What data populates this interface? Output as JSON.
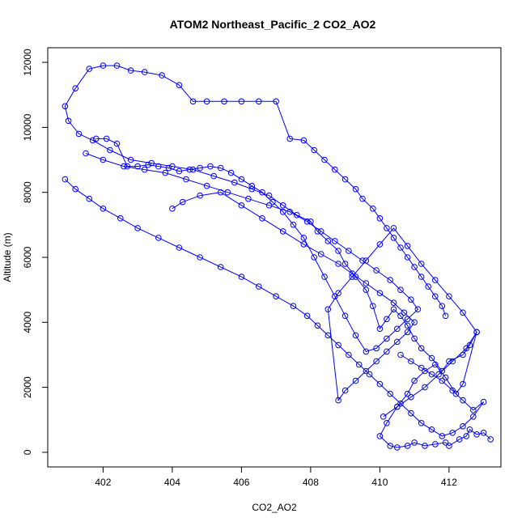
{
  "chart_data": {
    "type": "line",
    "markers": "open-circle",
    "title": "ATOM2 Northeast_Pacific_2 CO2_AO2",
    "xlabel": "CO2_AO2",
    "ylabel": "Altitude (m)",
    "xlim": [
      400.4,
      413.5
    ],
    "ylim": [
      -450,
      12450
    ],
    "xticks": [
      402,
      404,
      406,
      408,
      410,
      412
    ],
    "yticks": [
      0,
      2000,
      4000,
      6000,
      8000,
      10000,
      12000
    ],
    "grid": false,
    "legend": "none",
    "color": "#0000ff",
    "series": [
      {
        "x": [
          413.2,
          413.0,
          412.8,
          412.6,
          412.5,
          412.3,
          412.0,
          411.9,
          411.6,
          411.3,
          411.0,
          410.8,
          410.5,
          410.3,
          410.0,
          410.2,
          410.5,
          410.8,
          411.0,
          411.3,
          411.6,
          411.9,
          412.2,
          412.4,
          412.8,
          412.6,
          412.4,
          412.0,
          411.8,
          411.5,
          411.2,
          411.0,
          410.8,
          410.6,
          410.4,
          410.2,
          410.0,
          409.8,
          409.6,
          409.3,
          409.0,
          408.8,
          408.5,
          408.2,
          408.0,
          407.6,
          407.2,
          406.8,
          406.3,
          405.8,
          405.2,
          404.6,
          404.0,
          403.4,
          402.8,
          402.2,
          401.7,
          401.3,
          401.0,
          400.9,
          401.2,
          401.6,
          402.0,
          402.4,
          402.8,
          403.2,
          403.7,
          404.2,
          404.6,
          405.0,
          405.5,
          406.0,
          406.5,
          407.0,
          407.4,
          407.8,
          408.1,
          408.4,
          408.7,
          409.0,
          409.3,
          409.5,
          409.8,
          410.0,
          410.2,
          410.4,
          410.6,
          410.8,
          411.0,
          411.2,
          411.4,
          411.6,
          411.8,
          411.9
        ],
        "y": [
          400,
          600,
          550,
          700,
          500,
          400,
          200,
          300,
          250,
          200,
          300,
          200,
          150,
          200,
          500,
          900,
          1400,
          1800,
          2200,
          2500,
          2700,
          2300,
          1800,
          2100,
          3700,
          3300,
          3000,
          2800,
          2500,
          2900,
          3200,
          3500,
          3900,
          4200,
          4400,
          4100,
          3800,
          4500,
          5000,
          5400,
          5800,
          6200,
          6500,
          6800,
          7100,
          7300,
          7600,
          7900,
          8100,
          8300,
          8500,
          8700,
          8800,
          8900,
          9000,
          9300,
          9600,
          9800,
          10200,
          10650,
          11200,
          11800,
          11900,
          11900,
          11750,
          11700,
          11600,
          11300,
          10800,
          10800,
          10800,
          10800,
          10800,
          10800,
          9650,
          9600,
          9300,
          9000,
          8700,
          8400,
          8100,
          7800,
          7500,
          7200,
          6900,
          6600,
          6300,
          6000,
          5700,
          5400,
          5100,
          4800,
          4500,
          4200
        ]
      },
      {
        "x": [
          401.5,
          402.0,
          402.6,
          403.2,
          403.8,
          404.4,
          405.0,
          405.6,
          406.2,
          406.8,
          407.4,
          407.9,
          408.3,
          408.7,
          409.1,
          409.5,
          409.9,
          410.3,
          410.6,
          410.9,
          411.1,
          410.8,
          410.5,
          410.2,
          409.9,
          409.6,
          409.3,
          409.0,
          408.7,
          408.4,
          408.1,
          407.8,
          407.5,
          407.2,
          406.9,
          406.6,
          406.3,
          406.0,
          405.7,
          405.4,
          405.1,
          404.8,
          404.5,
          404.2,
          403.9,
          403.6,
          403.3,
          403.0,
          402.7,
          402.4,
          402.1,
          401.8
        ],
        "y": [
          9200,
          9000,
          8800,
          8700,
          8600,
          8400,
          8200,
          8000,
          7800,
          7600,
          7400,
          7100,
          6800,
          6500,
          6200,
          5900,
          5600,
          5300,
          5000,
          4700,
          4400,
          4100,
          3800,
          3500,
          3200,
          3100,
          3600,
          4200,
          4800,
          5400,
          6000,
          6600,
          7000,
          7400,
          7700,
          8000,
          8200,
          8400,
          8600,
          8750,
          8800,
          8750,
          8700,
          8650,
          8750,
          8800,
          8850,
          8800,
          8800,
          9500,
          9650,
          9650
        ]
      },
      {
        "x": [
          404.0,
          404.3,
          404.8,
          405.4,
          406.0,
          406.6,
          407.2,
          407.8,
          408.3,
          408.8,
          409.2,
          409.6,
          410.0,
          410.4,
          410.7,
          411.0,
          410.8,
          410.5,
          410.2,
          409.9,
          409.6,
          409.3,
          409.0,
          408.8,
          408.5,
          408.8,
          409.2,
          409.6,
          410.0,
          410.4,
          410.8,
          411.2,
          411.6,
          412.0,
          412.4,
          412.8,
          412.5,
          412.1,
          411.7,
          411.3,
          410.9,
          410.5,
          410.1
        ],
        "y": [
          7500,
          7700,
          7900,
          8000,
          7600,
          7200,
          6800,
          6400,
          6100,
          5800,
          5500,
          5200,
          4900,
          4600,
          4300,
          4000,
          3700,
          3400,
          3100,
          2800,
          2500,
          2200,
          1900,
          1600,
          4400,
          4900,
          5400,
          5900,
          6400,
          6900,
          6350,
          5800,
          5300,
          4800,
          4300,
          3700,
          3200,
          2800,
          2400,
          2000,
          1700,
          1400,
          1100
        ]
      },
      {
        "x": [
          410.6,
          410.9,
          411.2,
          411.5,
          411.8,
          412.1,
          412.4,
          412.7,
          413.0,
          412.7,
          412.4,
          412.1,
          411.8,
          411.5,
          411.2,
          410.9,
          410.6,
          410.3,
          410.0,
          409.7,
          409.4,
          409.1,
          408.8,
          408.5,
          408.2,
          407.9,
          407.5,
          407.0,
          406.5,
          406.0,
          405.4,
          404.8,
          404.2,
          403.6,
          403.0,
          402.5,
          402.0,
          401.6,
          401.2,
          400.9
        ],
        "y": [
          3000,
          2800,
          2600,
          2400,
          2200,
          1900,
          1600,
          1300,
          1550,
          1100,
          800,
          600,
          500,
          700,
          900,
          1200,
          1500,
          1800,
          2100,
          2400,
          2700,
          3000,
          3300,
          3600,
          3900,
          4200,
          4500,
          4800,
          5100,
          5400,
          5700,
          6000,
          6300,
          6600,
          6900,
          7200,
          7500,
          7800,
          8100,
          8400
        ]
      }
    ]
  }
}
